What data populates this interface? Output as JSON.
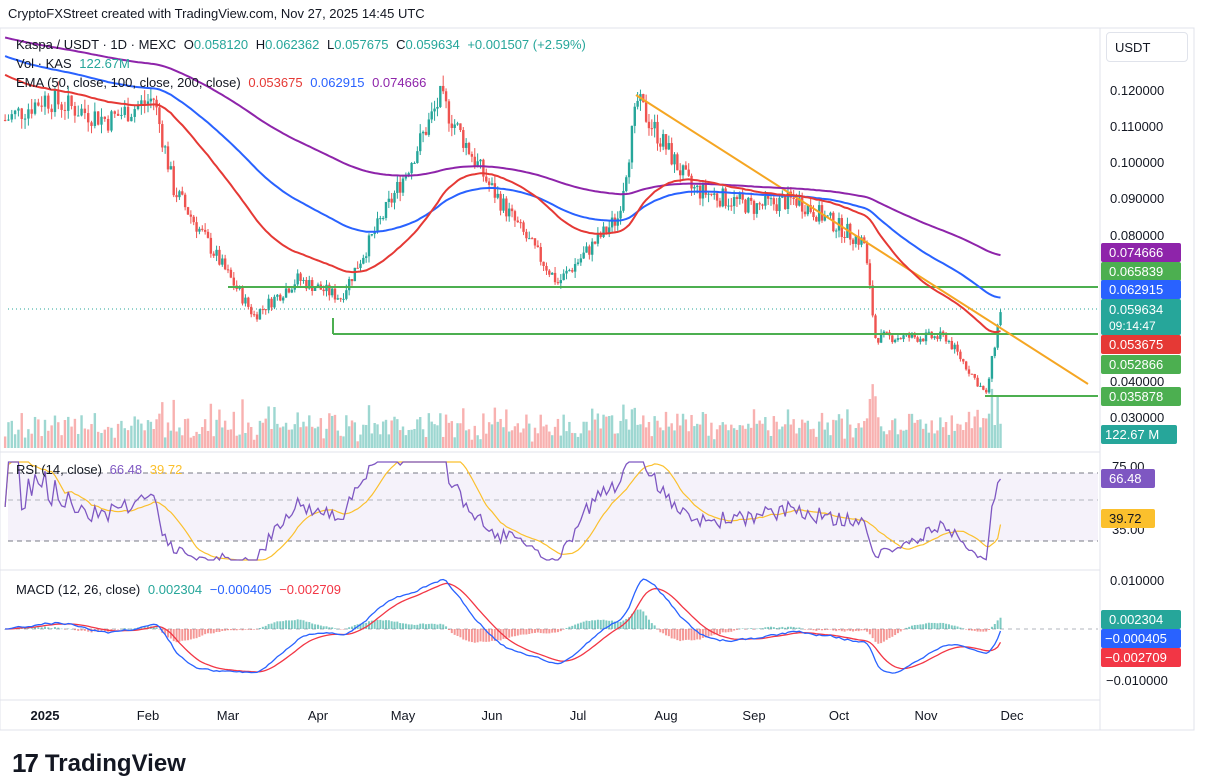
{
  "header": {
    "created": "CryptoFXStreet created with TradingView.com, Nov 27, 2025 14:45 UTC",
    "symbol": "Kaspa / USDT · 1D · MEXC",
    "o_label": "O",
    "o": "0.058120",
    "h_label": "H",
    "h": "0.062362",
    "l_label": "L",
    "l": "0.057675",
    "c_label": "C",
    "c": "0.059634",
    "change": "+0.001507 (+2.59%)",
    "vol_label": "Vol · KAS",
    "vol": "122.67M",
    "ema_label": "EMA (50, close, 100, close, 200, close)",
    "ema50": "0.053675",
    "ema100": "0.062915",
    "ema200": "0.074666",
    "unit": "USDT"
  },
  "rsi_legend": {
    "label": "RSI (14, close)",
    "rsi": "66.48",
    "ma": "39.72"
  },
  "macd_legend": {
    "label": "MACD (12, 26, close)",
    "hist": "0.002304",
    "macd": "−0.000405",
    "signal": "−0.002709"
  },
  "brand": {
    "logo": "17",
    "name": "TradingView"
  },
  "colors": {
    "up": "#26a69a",
    "down": "#ef5350",
    "ema50": "#e53935",
    "ema100": "#2962ff",
    "ema200": "#8e24aa",
    "trend": "#f5a623",
    "support": "#4caf50",
    "rsi": "#7e57c2",
    "rsi_ma": "#fbc02d",
    "macd": "#2962ff",
    "signal": "#f23645"
  },
  "chart_data": [
    {
      "type": "candlestick",
      "panel": "price",
      "title": "Kaspa / USDT · 1D · MEXC",
      "y_ticks": [
        "0.120000",
        "0.110000",
        "0.100000",
        "0.090000",
        "0.080000",
        "0.040000",
        "0.030000"
      ],
      "x_ticks": [
        "2025",
        "Feb",
        "Mar",
        "Apr",
        "May",
        "Jun",
        "Jul",
        "Aug",
        "Sep",
        "Oct",
        "Nov",
        "Dec"
      ],
      "price_path_dates": [
        "Jan 1",
        "Jan 20",
        "Feb 3",
        "Feb 10",
        "Mar 10",
        "Mar 25",
        "Apr 9",
        "May 1",
        "May 14",
        "May 31",
        "Jun 24",
        "Jul 15",
        "Jul 22",
        "Aug 10",
        "Sep 1",
        "Sep 16",
        "Oct 10",
        "Oct 14",
        "Nov 8",
        "Nov 22",
        "Nov 27"
      ],
      "price_path_close": [
        0.118,
        0.112,
        0.118,
        0.093,
        0.058,
        0.068,
        0.063,
        0.096,
        0.118,
        0.094,
        0.067,
        0.085,
        0.117,
        0.093,
        0.088,
        0.09,
        0.078,
        0.052,
        0.052,
        0.036,
        0.0596
      ],
      "ema": {
        "ema50_last": 0.053675,
        "ema100_last": 0.062915,
        "ema200_last": 0.074666
      },
      "support_levels": [
        0.065839,
        0.052866,
        0.035878
      ],
      "price_badges": [
        {
          "label": "0.074666",
          "color": "#8e24aa"
        },
        {
          "label": "0.065839",
          "color": "#4caf50"
        },
        {
          "label": "0.062915",
          "color": "#2962ff"
        },
        {
          "label": "0.059634",
          "sub": "09:14:47",
          "color": "#26a69a"
        },
        {
          "label": "0.053675",
          "color": "#e53935"
        },
        {
          "label": "0.052866",
          "color": "#4caf50"
        },
        {
          "label": "0.035878",
          "color": "#4caf50"
        },
        {
          "label": "122.67 M",
          "color": "#26a69a"
        }
      ],
      "trendline": {
        "from_date": "Jul 22",
        "from": 0.118,
        "to_date": "Dec 8",
        "to": 0.04
      }
    },
    {
      "type": "line",
      "panel": "rsi",
      "title": "RSI (14, close)",
      "y_ticks": [
        "75.00",
        "35.00"
      ],
      "last_rsi": 66.48,
      "last_ma": 39.72,
      "levels": [
        70,
        50,
        30
      ]
    },
    {
      "type": "histogram+line",
      "panel": "macd",
      "title": "MACD (12, 26, close)",
      "y_ticks": [
        "0.010000",
        "−0.010000"
      ],
      "last_hist": 0.002304,
      "last_macd": -0.000405,
      "last_signal": -0.002709
    }
  ]
}
